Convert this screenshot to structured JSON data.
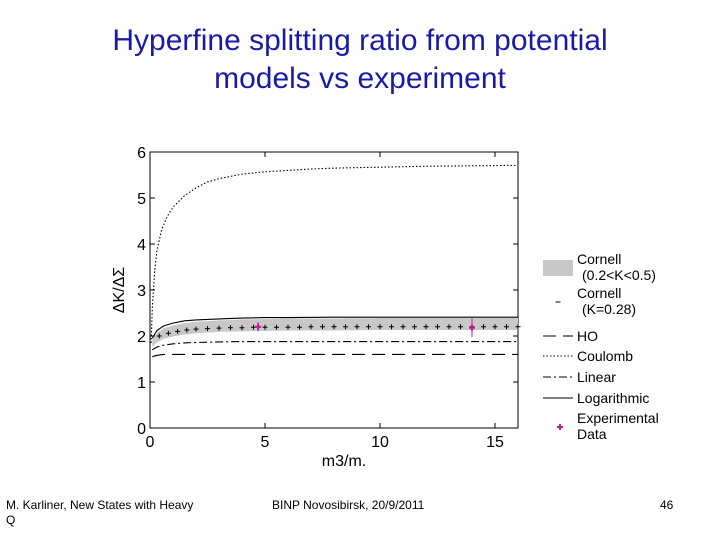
{
  "slide": {
    "title_line1": "Hyperfine splitting ratio from potential",
    "title_line2": "models vs experiment",
    "footer_left_line1": "M. Karliner, New States with Heavy",
    "footer_left_line2": "Q",
    "footer_center": "BINP Novosibirsk, 20/9/2011",
    "page_number": "46"
  },
  "chart_data": {
    "type": "line",
    "title": "",
    "xlabel": "m3/m.",
    "ylabel": "ΔK/ΔΣ",
    "xlim": [
      0,
      16
    ],
    "ylim": [
      0,
      6
    ],
    "xticks": [
      0,
      5,
      10,
      15
    ],
    "yticks": [
      0,
      1,
      2,
      3,
      4,
      5,
      6
    ],
    "grid": false,
    "legend_position": "right",
    "series": [
      {
        "name": "Cornell (0.2<K<0.5)",
        "style": "band",
        "color": "#c8c8c8",
        "x": [
          0.1,
          0.3,
          0.6,
          1,
          1.5,
          2,
          3,
          4,
          5,
          6,
          7,
          8,
          10,
          12,
          14,
          16
        ],
        "lower": [
          1.76,
          1.86,
          1.94,
          1.99,
          2.03,
          2.06,
          2.09,
          2.1,
          2.11,
          2.12,
          2.12,
          2.12,
          2.13,
          2.13,
          2.13,
          2.13
        ],
        "upper": [
          1.92,
          2.06,
          2.17,
          2.23,
          2.28,
          2.31,
          2.34,
          2.36,
          2.37,
          2.38,
          2.38,
          2.38,
          2.39,
          2.39,
          2.39,
          2.39
        ]
      },
      {
        "name": "Cornell (K=0.28)",
        "style": "plus",
        "color": "#000000",
        "x": [
          0.4,
          0.8,
          1.2,
          1.6,
          2,
          2.5,
          3,
          3.5,
          4,
          4.5,
          5,
          5.5,
          6,
          6.5,
          7,
          7.5,
          8,
          8.5,
          9,
          9.5,
          10,
          10.5,
          11,
          11.5,
          12,
          12.5,
          13,
          13.5,
          14,
          14.5,
          15,
          15.5,
          16
        ],
        "y": [
          2.0,
          2.06,
          2.1,
          2.13,
          2.15,
          2.16,
          2.17,
          2.18,
          2.18,
          2.19,
          2.19,
          2.19,
          2.19,
          2.19,
          2.2,
          2.2,
          2.2,
          2.2,
          2.2,
          2.2,
          2.2,
          2.2,
          2.2,
          2.2,
          2.2,
          2.2,
          2.2,
          2.2,
          2.2,
          2.2,
          2.2,
          2.2,
          2.2
        ]
      },
      {
        "name": "HO",
        "style": "longdash",
        "color": "#000000",
        "x": [
          0.1,
          0.3,
          0.6,
          1,
          2,
          4,
          6,
          8,
          10,
          12,
          14,
          16
        ],
        "y": [
          1.55,
          1.58,
          1.6,
          1.6,
          1.6,
          1.6,
          1.6,
          1.6,
          1.6,
          1.6,
          1.6,
          1.6
        ]
      },
      {
        "name": "Coulomb",
        "style": "dotted",
        "color": "#000000",
        "x": [
          0.05,
          0.1,
          0.2,
          0.3,
          0.5,
          0.75,
          1,
          1.5,
          2,
          2.5,
          3,
          4,
          5,
          6,
          7,
          8,
          10,
          12,
          14,
          16
        ],
        "y": [
          1.85,
          2.6,
          3.4,
          3.85,
          4.3,
          4.6,
          4.8,
          5.05,
          5.22,
          5.35,
          5.42,
          5.52,
          5.57,
          5.6,
          5.63,
          5.65,
          5.67,
          5.69,
          5.7,
          5.71
        ]
      },
      {
        "name": "Linear",
        "style": "dashdot",
        "color": "#000000",
        "x": [
          0.1,
          0.3,
          0.6,
          1,
          1.5,
          2,
          3,
          4,
          6,
          8,
          10,
          12,
          14,
          16
        ],
        "y": [
          1.7,
          1.76,
          1.8,
          1.83,
          1.85,
          1.86,
          1.87,
          1.88,
          1.88,
          1.88,
          1.88,
          1.88,
          1.88,
          1.88
        ]
      },
      {
        "name": "Logarithmic",
        "style": "solid",
        "color": "#000000",
        "x": [
          0.1,
          0.3,
          0.6,
          1,
          1.5,
          2,
          3,
          4,
          5,
          6,
          8,
          10,
          12,
          14,
          16
        ],
        "y": [
          1.95,
          2.12,
          2.22,
          2.28,
          2.33,
          2.35,
          2.37,
          2.39,
          2.4,
          2.4,
          2.41,
          2.41,
          2.41,
          2.41,
          2.41
        ]
      },
      {
        "name": "Experimental Data",
        "style": "errorbar",
        "color": "#c0199a",
        "x": [
          4.7,
          14.0
        ],
        "y": [
          2.2,
          2.18
        ],
        "yerr": [
          0.1,
          0.2
        ]
      }
    ],
    "legend": [
      {
        "label_line1": "Cornell",
        "label_line2": "(0.2<K<0.5)",
        "kind": "band"
      },
      {
        "label_line1": "Cornell",
        "label_line2": "(K=0.28)",
        "kind": "plus"
      },
      {
        "label_line1": "HO",
        "label_line2": "",
        "kind": "longdash"
      },
      {
        "label_line1": "Coulomb",
        "label_line2": "",
        "kind": "dotted"
      },
      {
        "label_line1": "Linear",
        "label_line2": "",
        "kind": "dashdot"
      },
      {
        "label_line1": "Logarithmic",
        "label_line2": "",
        "kind": "solid"
      },
      {
        "label_line1": "Experimental",
        "label_line2": "Data",
        "kind": "errorbar"
      }
    ]
  }
}
